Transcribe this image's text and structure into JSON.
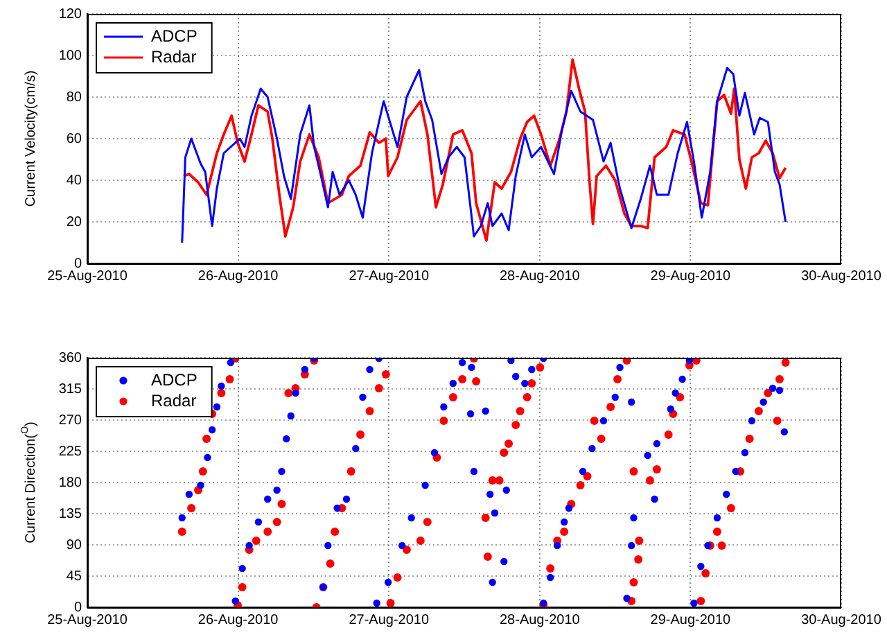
{
  "chart_data": [
    {
      "type": "line",
      "ylabel": "Current Velocity(cm/s)",
      "xlim": [
        "2010-08-25",
        "2010-08-30"
      ],
      "xticks": [
        {
          "value": "2010-08-25",
          "label": "25-Aug-2010"
        },
        {
          "value": "2010-08-26",
          "label": "26-Aug-2010"
        },
        {
          "value": "2010-08-27",
          "label": "27-Aug-2010"
        },
        {
          "value": "2010-08-28",
          "label": "28-Aug-2010"
        },
        {
          "value": "2010-08-29",
          "label": "29-Aug-2010"
        },
        {
          "value": "2010-08-30",
          "label": "30-Aug-2010"
        }
      ],
      "ylim": [
        0,
        120
      ],
      "yticks": [
        0,
        20,
        40,
        60,
        80,
        100,
        120
      ],
      "grid": true,
      "legend": "top left",
      "series": [
        {
          "name": "ADCP",
          "color": "#0000ff",
          "x": [
            "2010-08-25T15:05",
            "2010-08-25T15:36",
            "2010-08-25T16:33",
            "2010-08-25T18:02",
            "2010-08-25T18:46",
            "2010-08-25T19:52",
            "2010-08-25T20:37",
            "2010-08-25T21:43",
            "2010-08-25T22:49",
            "2010-08-26T00:17",
            "2010-08-26T01:02",
            "2010-08-26T02:08",
            "2010-08-26T03:36",
            "2010-08-26T04:42",
            "2010-08-26T06:11",
            "2010-08-26T07:18",
            "2010-08-26T08:24",
            "2010-08-26T09:53",
            "2010-08-26T11:21",
            "2010-08-26T12:06",
            "2010-08-26T13:12",
            "2010-08-26T14:18",
            "2010-08-26T15:03",
            "2010-08-26T16:09",
            "2010-08-26T17:37",
            "2010-08-26T18:43",
            "2010-08-26T19:50",
            "2010-08-26T21:18",
            "2010-08-26T23:10",
            "2010-08-27T00:16",
            "2010-08-27T01:22",
            "2010-08-27T02:50",
            "2010-08-27T04:49",
            "2010-08-27T05:47",
            "2010-08-27T06:53",
            "2010-08-27T08:22",
            "2010-08-27T09:29",
            "2010-08-27T10:48",
            "2010-08-27T12:03",
            "2010-08-27T13:32",
            "2010-08-27T14:38",
            "2010-08-27T15:44",
            "2010-08-27T16:29",
            "2010-08-27T17:57",
            "2010-08-27T19:04",
            "2010-08-27T20:11",
            "2010-08-27T21:38",
            "2010-08-27T22:44",
            "2010-08-28T00:13",
            "2010-08-28T02:17",
            "2010-08-28T03:32",
            "2010-08-28T05:01",
            "2010-08-28T06:29",
            "2010-08-28T08:29",
            "2010-08-28T10:10",
            "2010-08-28T11:17",
            "2010-08-28T12:46",
            "2010-08-28T14:36",
            "2010-08-28T16:05",
            "2010-08-28T17:33",
            "2010-08-28T18:39",
            "2010-08-28T20:30",
            "2010-08-28T21:58",
            "2010-08-28T23:27",
            "2010-08-29T00:33",
            "2010-08-29T01:48",
            "2010-08-29T03:08",
            "2010-08-29T04:15",
            "2010-08-29T05:51",
            "2010-08-29T06:49",
            "2010-08-29T07:47",
            "2010-08-29T08:40",
            "2010-08-29T10:08",
            "2010-08-29T11:01",
            "2010-08-29T12:20",
            "2010-08-29T13:26",
            "2010-08-29T14:11",
            "2010-08-29T15:08"
          ],
          "values": [
            10,
            51,
            60,
            48,
            44,
            18,
            36,
            53,
            56,
            60,
            56,
            71,
            84,
            80,
            60,
            42,
            31,
            62,
            76,
            56,
            42,
            27,
            44,
            33,
            40,
            33,
            22,
            53,
            78,
            67,
            56,
            80,
            93,
            78,
            69,
            43,
            51,
            56,
            51,
            13,
            18,
            29,
            18,
            24,
            16,
            42,
            62,
            51,
            56,
            43,
            64,
            83,
            73,
            69,
            49,
            58,
            36,
            17,
            31,
            47,
            33,
            33,
            53,
            68,
            49,
            22,
            44,
            78,
            94,
            91,
            71,
            82,
            62,
            70,
            68,
            44,
            38,
            20
          ]
        },
        {
          "name": "Radar",
          "color": "#ff0000",
          "x": [
            "2010-08-25T15:19",
            "2010-08-25T16:12",
            "2010-08-25T17:39",
            "2010-08-25T18:59",
            "2010-08-25T20:37",
            "2010-08-25T21:43",
            "2010-08-25T22:58",
            "2010-08-25T23:56",
            "2010-08-26T01:02",
            "2010-08-26T02:08",
            "2010-08-26T03:14",
            "2010-08-26T04:42",
            "2010-08-26T05:27",
            "2010-08-26T06:34",
            "2010-08-26T07:31",
            "2010-08-26T08:46",
            "2010-08-26T09:53",
            "2010-08-26T11:21",
            "2010-08-26T12:50",
            "2010-08-26T14:18",
            "2010-08-26T16:31",
            "2010-08-26T17:37",
            "2010-08-26T19:28",
            "2010-08-26T20:57",
            "2010-08-26T22:25",
            "2010-08-26T23:31",
            "2010-08-26T23:53",
            "2010-08-27T01:22",
            "2010-08-27T02:50",
            "2010-08-27T05:02",
            "2010-08-27T06:08",
            "2010-08-27T07:29",
            "2010-08-27T08:35",
            "2010-08-27T10:13",
            "2010-08-27T11:41",
            "2010-08-27T13:09",
            "2010-08-27T13:53",
            "2010-08-27T15:31",
            "2010-08-27T16:51",
            "2010-08-27T17:57",
            "2010-08-27T19:26",
            "2010-08-27T20:54",
            "2010-08-27T22:00",
            "2010-08-27T23:07",
            "2010-08-28T00:13",
            "2010-08-28T01:42",
            "2010-08-28T03:10",
            "2010-08-28T04:16",
            "2010-08-28T05:14",
            "2010-08-28T06:16",
            "2010-08-28T07:13",
            "2010-08-28T07:58",
            "2010-08-28T08:29",
            "2010-08-28T09:04",
            "2010-08-28T10:33",
            "2010-08-28T12:01",
            "2010-08-28T13:29",
            "2010-08-28T14:36",
            "2010-08-28T16:05",
            "2010-08-28T17:11",
            "2010-08-28T18:17",
            "2010-08-28T20:08",
            "2010-08-28T21:14",
            "2010-08-28T23:04",
            "2010-08-29T00:10",
            "2010-08-29T01:39",
            "2010-08-29T02:46",
            "2010-08-29T04:15",
            "2010-08-29T05:21",
            "2010-08-29T06:27",
            "2010-08-29T06:58",
            "2010-08-29T07:47",
            "2010-08-29T08:49",
            "2010-08-29T09:46",
            "2010-08-29T10:52",
            "2010-08-29T11:59",
            "2010-08-29T13:05",
            "2010-08-29T14:11",
            "2010-08-29T15:08"
          ],
          "values": [
            42,
            43,
            39,
            33,
            53,
            62,
            71,
            58,
            49,
            62,
            76,
            73,
            60,
            33,
            13,
            27,
            49,
            62,
            51,
            29,
            33,
            42,
            47,
            63,
            58,
            60,
            42,
            51,
            69,
            78,
            62,
            27,
            38,
            62,
            64,
            53,
            29,
            11,
            39,
            36,
            44,
            60,
            68,
            71,
            62,
            47,
            60,
            73,
            98,
            84,
            73,
            38,
            19,
            42,
            47,
            40,
            24,
            18,
            18,
            17,
            51,
            56,
            64,
            62,
            49,
            29,
            28,
            78,
            81,
            72,
            84,
            50,
            36,
            51,
            53,
            59,
            53,
            41,
            46
          ]
        }
      ]
    },
    {
      "type": "scatter",
      "ylabel": "Current Direction($^{O}$)",
      "xlim": [
        "2010-08-25",
        "2010-08-30"
      ],
      "xticks": [
        {
          "value": "2010-08-25",
          "label": "25-Aug-2010"
        },
        {
          "value": "2010-08-26",
          "label": "26-Aug-2010"
        },
        {
          "value": "2010-08-27",
          "label": "27-Aug-2010"
        },
        {
          "value": "2010-08-28",
          "label": "28-Aug-2010"
        },
        {
          "value": "2010-08-29",
          "label": "29-Aug-2010"
        },
        {
          "value": "2010-08-30",
          "label": "30-Aug-2010"
        }
      ],
      "ylim": [
        0,
        360
      ],
      "yticks": [
        0,
        45,
        90,
        135,
        180,
        225,
        270,
        315,
        360
      ],
      "grid": true,
      "legend": "top left",
      "marker": "circle",
      "series": [
        {
          "name": "ADCP",
          "color": "#0000ff",
          "x": [
            "2010-08-25T15:05",
            "2010-08-25T16:12",
            "2010-08-25T18:02",
            "2010-08-25T19:08",
            "2010-08-25T19:52",
            "2010-08-25T20:37",
            "2010-08-25T21:20",
            "2010-08-25T22:49",
            "2010-08-25T23:34",
            "2010-08-26T00:40",
            "2010-08-26T01:46",
            "2010-08-26T03:14",
            "2010-08-26T04:42",
            "2010-08-26T06:11",
            "2010-08-26T06:56",
            "2010-08-26T07:41",
            "2010-08-26T08:24",
            "2010-08-26T09:09",
            "2010-08-26T10:37",
            "2010-08-26T12:06",
            "2010-08-26T13:33",
            "2010-08-26T14:18",
            "2010-08-26T15:46",
            "2010-08-26T17:15",
            "2010-08-26T18:43",
            "2010-08-26T19:50",
            "2010-08-26T20:57",
            "2010-08-26T22:25",
            "2010-08-26T22:04",
            "2010-08-26T23:53",
            "2010-08-27T02:06",
            "2010-08-27T03:35",
            "2010-08-27T05:47",
            "2010-08-27T07:15",
            "2010-08-27T08:44",
            "2010-08-27T10:13",
            "2010-08-27T11:41",
            "2010-08-27T13:00",
            "2010-08-27T15:23",
            "2010-08-27T13:32",
            "2010-08-27T16:06",
            "2010-08-27T16:29",
            "2010-08-27T13:09",
            "2010-08-27T16:51",
            "2010-08-27T18:19",
            "2010-08-27T19:26",
            "2010-08-27T20:11",
            "2010-08-27T18:42",
            "2010-08-27T21:38",
            "2010-08-27T22:44",
            "2010-08-28T00:36",
            "2010-08-28T00:36",
            "2010-08-28T01:42",
            "2010-08-28T02:48",
            "2010-08-28T03:54",
            "2010-08-28T04:39",
            "2010-08-28T06:52",
            "2010-08-28T08:20",
            "2010-08-28T10:10",
            "2010-08-28T12:01",
            "2010-08-28T12:46",
            "2010-08-28T14:36",
            "2010-08-28T13:52",
            "2010-08-28T14:36",
            "2010-08-28T14:58",
            "2010-08-28T17:11",
            "2010-08-28T18:17",
            "2010-08-28T18:39",
            "2010-08-28T20:51",
            "2010-08-28T21:36",
            "2010-08-28T22:42",
            "2010-08-28T23:50",
            "2010-08-29T00:33",
            "2010-08-29T01:39",
            "2010-08-29T02:46",
            "2010-08-29T04:15",
            "2010-08-29T05:43",
            "2010-08-29T07:12",
            "2010-08-29T08:40",
            "2010-08-29T09:46",
            "2010-08-29T11:37",
            "2010-08-29T13:05",
            "2010-08-29T14:11",
            "2010-08-29T14:56"
          ],
          "values": [
            129,
            163,
            176,
            216,
            256,
            289,
            319,
            353,
            9,
            56,
            89,
            123,
            156,
            169,
            196,
            243,
            276,
            309,
            343,
            359,
            29,
            89,
            143,
            156,
            229,
            303,
            343,
            359,
            6,
            36,
            89,
            129,
            176,
            223,
            289,
            323,
            353,
            279,
            283,
            196,
            163,
            36,
            346,
            136,
            66,
            356,
            333,
            169,
            323,
            343,
            359,
            6,
            43,
            89,
            123,
            143,
            196,
            229,
            269,
            303,
            346,
            296,
            13,
            89,
            129,
            219,
            156,
            236,
            286,
            309,
            329,
            356,
            6,
            59,
            89,
            129,
            163,
            196,
            223,
            269,
            296,
            316,
            313,
            253
          ]
        },
        {
          "name": "Radar",
          "color": "#ff0000",
          "x": [
            "2010-08-25T15:05",
            "2010-08-25T16:33",
            "2010-08-25T17:39",
            "2010-08-25T18:24",
            "2010-08-25T18:59",
            "2010-08-25T19:52",
            "2010-08-25T21:20",
            "2010-08-25T22:40",
            "2010-08-25T23:34",
            "2010-08-25T23:56",
            "2010-08-26T00:40",
            "2010-08-26T01:46",
            "2010-08-26T02:53",
            "2010-08-26T04:42",
            "2010-08-26T06:11",
            "2010-08-26T06:56",
            "2010-08-26T08:01",
            "2010-08-26T09:09",
            "2010-08-26T10:37",
            "2010-08-26T12:06",
            "2010-08-26T12:28",
            "2010-08-26T13:33",
            "2010-08-26T14:40",
            "2010-08-26T15:24",
            "2010-08-26T16:31",
            "2010-08-26T17:59",
            "2010-08-26T19:28",
            "2010-08-26T20:57",
            "2010-08-26T22:25",
            "2010-08-26T23:31",
            "2010-08-27T00:16",
            "2010-08-27T01:22",
            "2010-08-27T02:50",
            "2010-08-27T05:02",
            "2010-08-27T06:08",
            "2010-08-27T07:38",
            "2010-08-27T08:44",
            "2010-08-27T10:13",
            "2010-08-27T11:41",
            "2010-08-27T13:32",
            "2010-08-27T13:53",
            "2010-08-27T15:23",
            "2010-08-27T15:44",
            "2010-08-27T16:29",
            "2010-08-27T17:35",
            "2010-08-27T18:19",
            "2010-08-27T19:04",
            "2010-08-27T20:11",
            "2010-08-27T20:54",
            "2010-08-27T22:00",
            "2010-08-27T22:44",
            "2010-08-28T00:04",
            "2010-08-28T00:36",
            "2010-08-28T01:42",
            "2010-08-28T02:48",
            "2010-08-28T03:54",
            "2010-08-28T05:01",
            "2010-08-28T06:29",
            "2010-08-28T07:35",
            "2010-08-28T08:42",
            "2010-08-28T09:48",
            "2010-08-28T11:17",
            "2010-08-28T12:23",
            "2010-08-28T13:52",
            "2010-08-28T14:36",
            "2010-08-28T14:58",
            "2010-08-28T15:42",
            "2010-08-28T15:50",
            "2010-08-28T14:58",
            "2010-08-28T17:33",
            "2010-08-28T18:39",
            "2010-08-28T20:30",
            "2010-08-28T21:14",
            "2010-08-28T22:20",
            "2010-08-28T23:50",
            "2010-08-29T00:56",
            "2010-08-29T01:39",
            "2010-08-29T02:24",
            "2010-08-29T03:08",
            "2010-08-29T04:15",
            "2010-08-29T04:59",
            "2010-08-29T06:27",
            "2010-08-29T07:55",
            "2010-08-29T09:24",
            "2010-08-29T10:52",
            "2010-08-29T12:20",
            "2010-08-29T13:49",
            "2010-08-29T14:11",
            "2010-08-29T15:08"
          ],
          "values": [
            109,
            143,
            169,
            196,
            243,
            279,
            309,
            329,
            359,
            3,
            29,
            83,
            96,
            109,
            123,
            149,
            309,
            316,
            336,
            356,
            0,
            29,
            63,
            109,
            143,
            196,
            249,
            283,
            316,
            336,
            6,
            43,
            83,
            96,
            123,
            216,
            269,
            303,
            329,
            359,
            326,
            129,
            73,
            183,
            183,
            223,
            236,
            263,
            283,
            303,
            323,
            346,
            3,
            56,
            96,
            109,
            149,
            176,
            189,
            269,
            243,
            289,
            329,
            356,
            9,
            36,
            69,
            96,
            196,
            183,
            199,
            249,
            279,
            303,
            349,
            356,
            9,
            49,
            89,
            109,
            89,
            143,
            196,
            243,
            283,
            309,
            269,
            329,
            353
          ]
        }
      ]
    }
  ]
}
